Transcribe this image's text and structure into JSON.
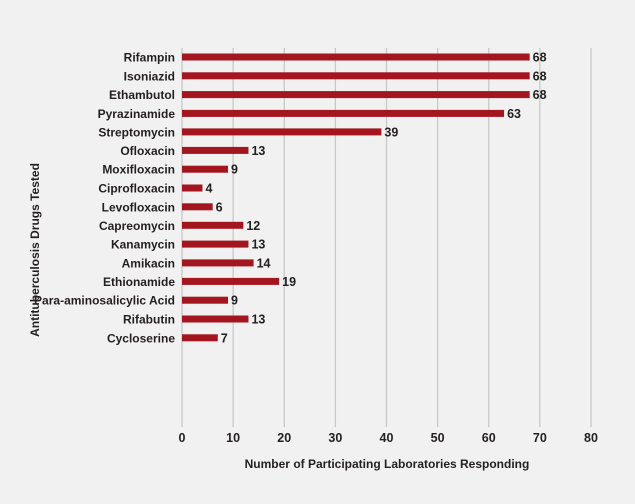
{
  "chart_data": {
    "type": "bar",
    "orientation": "horizontal",
    "categories": [
      "Rifampin",
      "Isoniazid",
      "Ethambutol",
      "Pyrazinamide",
      "Streptomycin",
      "Ofloxacin",
      "Moxifloxacin",
      "Ciprofloxacin",
      "Levofloxacin",
      "Capreomycin",
      "Kanamycin",
      "Amikacin",
      "Ethionamide",
      "Para-aminosalicylic Acid",
      "Rifabutin",
      "Cycloserine"
    ],
    "groups": [
      [
        0,
        1,
        2,
        3
      ],
      [
        4
      ],
      [
        5,
        6,
        7,
        8
      ],
      [
        9,
        10,
        11
      ],
      [
        12,
        13,
        14,
        15
      ]
    ],
    "values": [
      68,
      68,
      68,
      63,
      39,
      13,
      9,
      4,
      6,
      12,
      13,
      14,
      19,
      9,
      13,
      7
    ],
    "xlabel": "Number of Participating Laboratories Responding",
    "ylabel": "Antituberculosis Drugs Tested",
    "xlim": [
      0,
      80
    ],
    "xticks": [
      0,
      10,
      20,
      30,
      40,
      50,
      60,
      70,
      80
    ],
    "grid": "vertical",
    "data_labels": true,
    "colors": {
      "bar": "#a3161f",
      "grid": "#c8c8c8",
      "background": "#f1f1f1"
    }
  }
}
